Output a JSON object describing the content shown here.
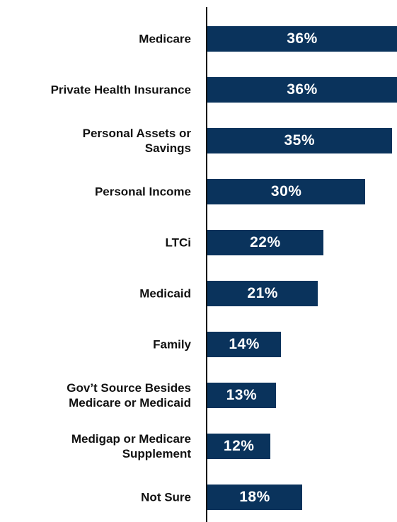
{
  "chart_data": {
    "type": "bar",
    "orientation": "horizontal",
    "color": "#0a335c",
    "categories": [
      "Medicare",
      "Private Health Insurance",
      "Personal Assets or\nSavings",
      "Personal Income",
      "LTCi",
      "Medicaid",
      "Family",
      "Gov’t Source Besides\nMedicare or Medicaid",
      "Medigap or Medicare\nSupplement",
      "Not Sure"
    ],
    "values": [
      36,
      36,
      35,
      30,
      22,
      21,
      14,
      13,
      12,
      18
    ],
    "value_labels": [
      "36%",
      "36%",
      "35%",
      "30%",
      "22%",
      "21%",
      "14%",
      "13%",
      "12%",
      "18%"
    ]
  }
}
